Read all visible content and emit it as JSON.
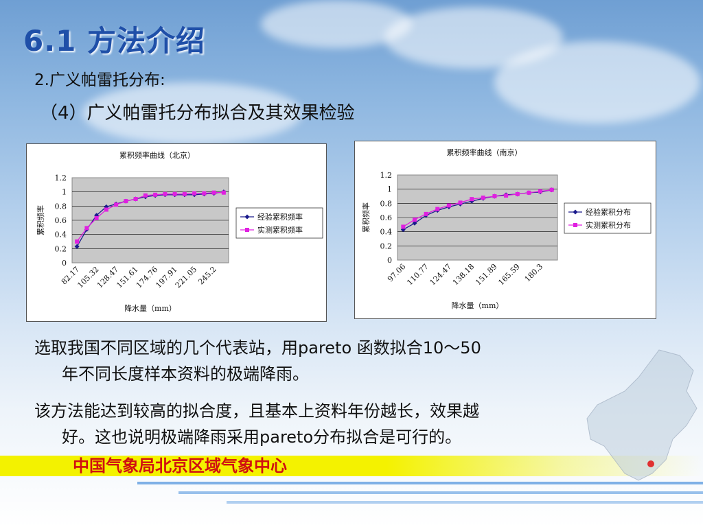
{
  "slide": {
    "title": "6.1  方法介绍",
    "subtitle": "2.广义帕雷托分布:",
    "subtitle2": "（4）广义帕雷托分布拟合及其效果检验",
    "paragraph1_line1": "选取我国不同区域的几个代表站，用pareto 函数拟合10～50",
    "paragraph1_line2": "年不同长度样本资料的极端降雨。",
    "paragraph2_line1": "该方法能达到较高的拟合度，且基本上资料年份越长，效果越",
    "paragraph2_line2": "好。这也说明极端降雨采用pareto分布拟合是可行的。",
    "banner": "中国气象局北京区域气象中心",
    "colors": {
      "title": "#1f4fa8",
      "banner_bg": "#f3f200",
      "banner_text": "#d01010"
    }
  },
  "chart_data": [
    {
      "type": "line",
      "title": "累积频率曲线（北京）",
      "xlabel": "降水量（mm）",
      "ylabel": "累积频率",
      "ylim": [
        0,
        1.2
      ],
      "yticks": [
        "0",
        "0.2",
        "0.4",
        "0.6",
        "0.8",
        "1",
        "1.2"
      ],
      "x": [
        82.17,
        93.75,
        105.32,
        116.9,
        128.47,
        140.04,
        151.61,
        163.19,
        174.76,
        186.34,
        197.91,
        209.48,
        221.05,
        233.13,
        245.2,
        256.4
      ],
      "xtick_labels": [
        "82.17",
        "105.32",
        "128.47",
        "151.61",
        "174.76",
        "197.91",
        "221.05",
        "245.2"
      ],
      "legend_position": "right",
      "grid": true,
      "series": [
        {
          "name": "经验累积频率",
          "color": "#1a1a8c",
          "marker": "diamond",
          "values": [
            0.23,
            0.47,
            0.67,
            0.79,
            0.83,
            0.87,
            0.9,
            0.93,
            0.95,
            0.96,
            0.96,
            0.96,
            0.96,
            0.97,
            0.98,
            1.0
          ]
        },
        {
          "name": "实测累积频率",
          "color": "#e020e0",
          "marker": "square",
          "values": [
            0.3,
            0.49,
            0.63,
            0.75,
            0.82,
            0.87,
            0.9,
            0.95,
            0.96,
            0.97,
            0.97,
            0.97,
            0.98,
            0.98,
            0.99,
            0.99
          ]
        }
      ]
    },
    {
      "type": "line",
      "title": "累积频率曲线（南京）",
      "xlabel": "降水量（mm）",
      "ylabel": "累积频率",
      "ylim": [
        0,
        1.2
      ],
      "yticks": [
        "0",
        "0.2",
        "0.4",
        "0.6",
        "0.8",
        "1",
        "1.2"
      ],
      "x": [
        97.06,
        103.92,
        110.77,
        117.62,
        124.47,
        131.32,
        138.18,
        145.04,
        151.89,
        158.74,
        165.59,
        172.94,
        180.3,
        187.66
      ],
      "xtick_labels": [
        "97.06",
        "110.77",
        "124.47",
        "138.18",
        "151.89",
        "165.59",
        "180.3"
      ],
      "legend_position": "right",
      "grid": true,
      "series": [
        {
          "name": "经验累积分布",
          "color": "#1a1a8c",
          "marker": "diamond",
          "values": [
            0.43,
            0.52,
            0.63,
            0.7,
            0.75,
            0.79,
            0.83,
            0.87,
            0.9,
            0.92,
            0.93,
            0.95,
            0.96,
            0.99
          ]
        },
        {
          "name": "实测累积分布",
          "color": "#e020e0",
          "marker": "square",
          "values": [
            0.47,
            0.57,
            0.65,
            0.72,
            0.77,
            0.81,
            0.86,
            0.88,
            0.9,
            0.91,
            0.93,
            0.95,
            0.97,
            0.99
          ]
        }
      ]
    }
  ]
}
